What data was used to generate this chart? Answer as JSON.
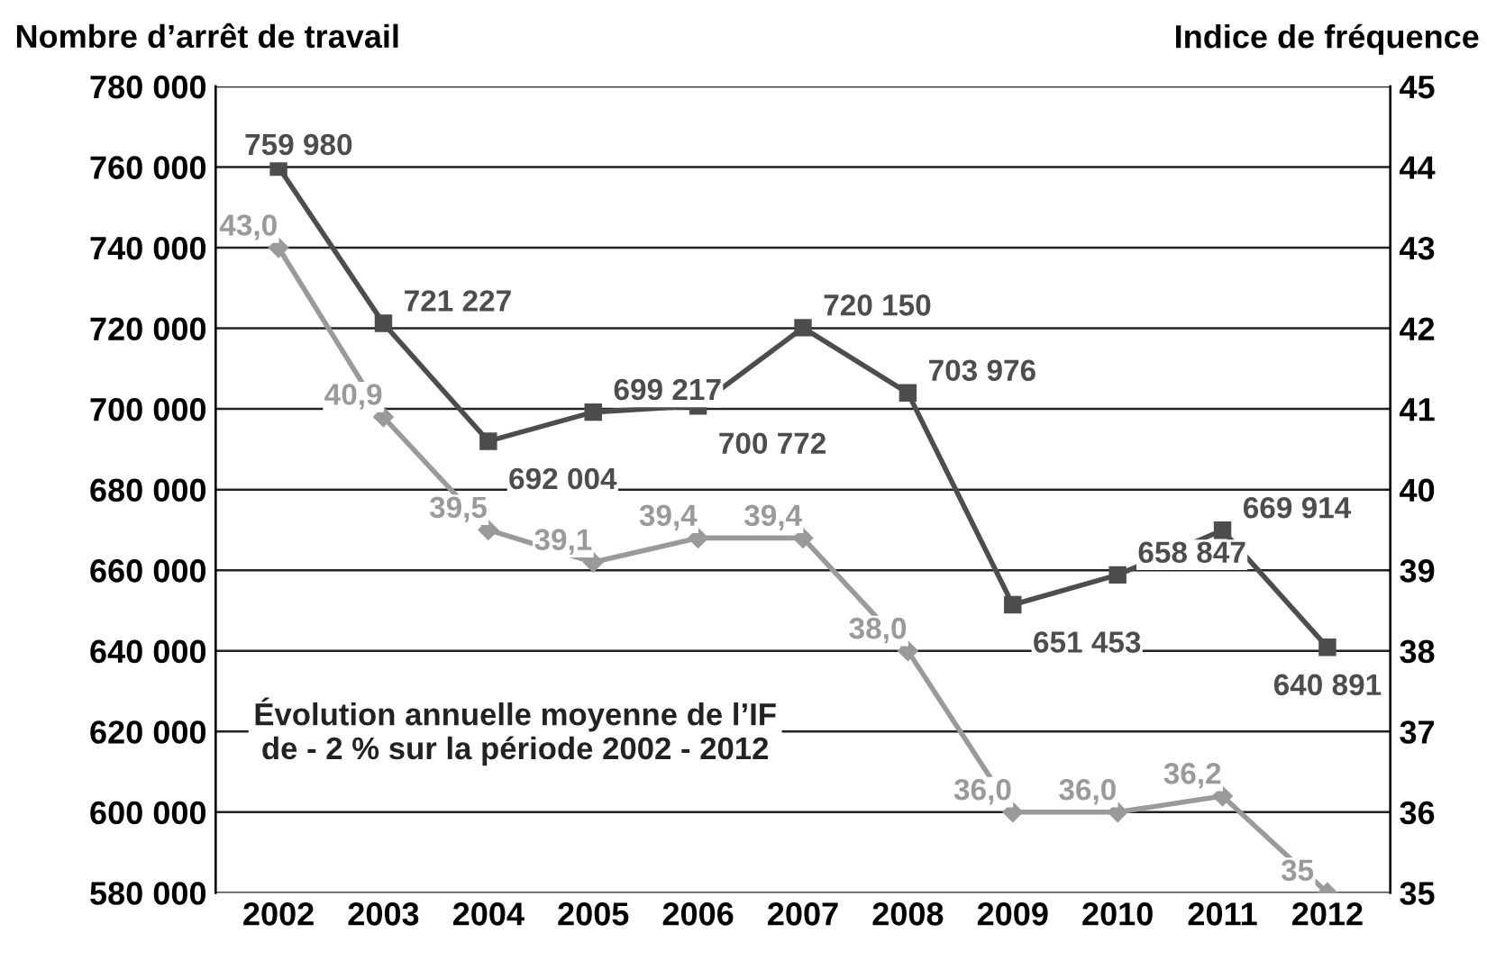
{
  "chart_data": {
    "type": "line",
    "categories": [
      "2002",
      "2003",
      "2004",
      "2005",
      "2006",
      "2007",
      "2008",
      "2009",
      "2010",
      "2011",
      "2012"
    ],
    "ylabel": "Nombre d’arrêt de travail",
    "y2label": "Indice de fréquence",
    "series": [
      {
        "color": "#4d4d4d",
        "marker": "square",
        "values": [
          759980,
          721227,
          692004,
          699217,
          700772,
          720150,
          703976,
          651453,
          658847,
          669914,
          640891
        ],
        "value_labels": [
          "759 980",
          "721 227",
          "692 004",
          "699 217",
          "700 772",
          "720 150",
          "703 976",
          "651 453",
          "658 847",
          "669 914",
          "640 891"
        ]
      },
      {
        "color": "#9a9a9a",
        "marker": "diamond",
        "axis": "y2",
        "values": [
          43.0,
          40.9,
          39.5,
          39.1,
          39.4,
          39.4,
          38.0,
          36.0,
          36.0,
          36.2,
          35
        ],
        "value_labels": [
          "43,0",
          "40,9",
          "39,5",
          "39,1",
          "39,4",
          "39,4",
          "38,0",
          "36,0",
          "36,0",
          "36,2",
          "35"
        ]
      }
    ],
    "ylim": [
      580000,
      780000
    ],
    "yticks": [
      {
        "value": 580000,
        "label": "580 000"
      },
      {
        "value": 600000,
        "label": "600 000"
      },
      {
        "value": 620000,
        "label": "620 000"
      },
      {
        "value": 640000,
        "label": "640 000"
      },
      {
        "value": 660000,
        "label": "660 000"
      },
      {
        "value": 680000,
        "label": "680 000"
      },
      {
        "value": 700000,
        "label": "700 000"
      },
      {
        "value": 720000,
        "label": "720 000"
      },
      {
        "value": 740000,
        "label": "740 000"
      },
      {
        "value": 760000,
        "label": "760 000"
      },
      {
        "value": 780000,
        "label": "780 000"
      }
    ],
    "y2lim": [
      35,
      45
    ],
    "y2ticks": [
      35,
      36,
      37,
      38,
      39,
      40,
      41,
      42,
      43,
      44,
      45
    ],
    "grid": "y",
    "line_style": "solid",
    "annotations": [
      "Évolution annuelle moyenne de l’IF\nde - 2 % sur la période 2002 - 2012"
    ]
  }
}
